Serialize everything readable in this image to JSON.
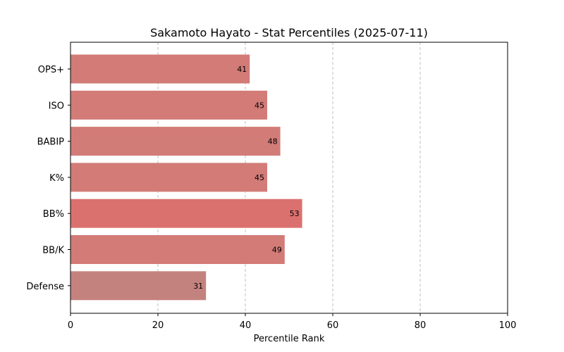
{
  "chart_data": {
    "type": "bar",
    "orientation": "horizontal",
    "title": "Sakamoto Hayato - Stat Percentiles (2025-07-11)",
    "xlabel": "Percentile Rank",
    "ylabel": "",
    "xlim": [
      0,
      100
    ],
    "xticks": [
      0,
      20,
      40,
      60,
      80,
      100
    ],
    "grid": "x-dashed",
    "categories": [
      "OPS+",
      "ISO",
      "BABIP",
      "K%",
      "BB%",
      "BB/K",
      "Defense"
    ],
    "values": [
      41,
      45,
      48,
      45,
      53,
      49,
      31
    ],
    "colors": [
      "#d27b77",
      "#d27b77",
      "#d27c78",
      "#d27b77",
      "#db716e",
      "#d27b77",
      "#c4827e"
    ]
  }
}
